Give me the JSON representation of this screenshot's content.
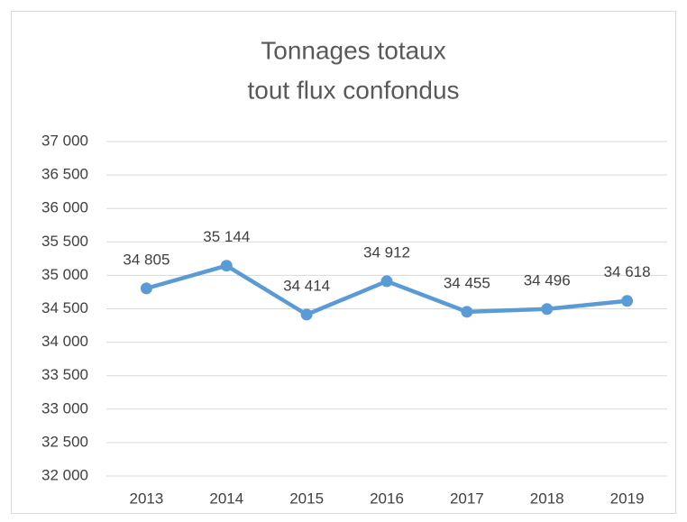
{
  "chart_data": {
    "type": "line",
    "title": [
      "Tonnages totaux",
      "tout flux confondus"
    ],
    "categories": [
      "2013",
      "2014",
      "2015",
      "2016",
      "2017",
      "2018",
      "2019"
    ],
    "values": [
      34805,
      35144,
      34414,
      34912,
      34455,
      34496,
      34618
    ],
    "value_labels": [
      "34 805",
      "35 144",
      "34 414",
      "34 912",
      "34 455",
      "34 496",
      "34 618"
    ],
    "color": "#5b9bd5",
    "ylim": [
      32000,
      37000
    ],
    "yticks": [
      {
        "value": 32000,
        "label": "32 000"
      },
      {
        "value": 32500,
        "label": "32 500"
      },
      {
        "value": 33000,
        "label": "33 000"
      },
      {
        "value": 33500,
        "label": "33 500"
      },
      {
        "value": 34000,
        "label": "34 000"
      },
      {
        "value": 34500,
        "label": "34 500"
      },
      {
        "value": 35000,
        "label": "35 000"
      },
      {
        "value": 35500,
        "label": "35 500"
      },
      {
        "value": 36000,
        "label": "36 000"
      },
      {
        "value": 36500,
        "label": "36 500"
      },
      {
        "value": 37000,
        "label": "37 000"
      }
    ],
    "grid": true
  }
}
